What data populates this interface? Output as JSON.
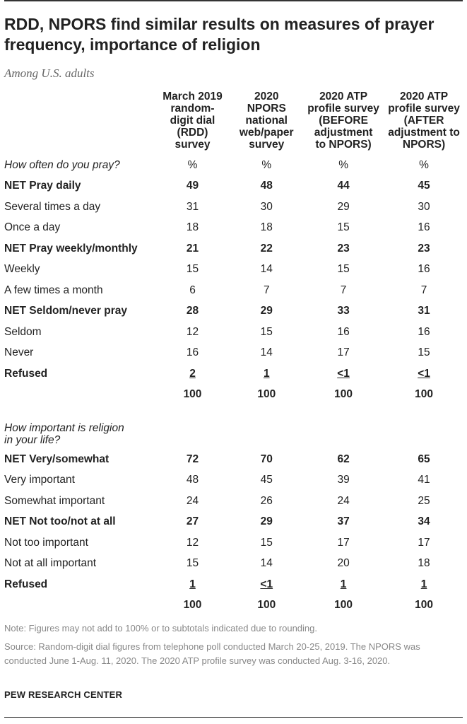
{
  "title": "RDD, NPORS find similar results on measures of prayer frequency, importance of religion",
  "subtitle": "Among U.S. adults",
  "chart_data": {
    "type": "table",
    "columns": [
      "March 2019 random-digit dial (RDD) survey",
      "2020 NPORS national web/paper survey",
      "2020 ATP profile survey (BEFORE adjustment to NPORS)",
      "2020 ATP profile survey (AFTER adjustment to NPORS)"
    ],
    "column_lines": [
      [
        "March 2019",
        "random-",
        "digit dial",
        "(RDD)",
        "survey"
      ],
      [
        "2020",
        "NPORS",
        "national",
        "web/paper",
        "survey"
      ],
      [
        "2020 ATP",
        "profile survey",
        "(BEFORE",
        "adjustment",
        "to NPORS)"
      ],
      [
        "2020 ATP",
        "profile survey",
        "(AFTER",
        "adjustment to",
        "NPORS)"
      ]
    ],
    "sections": [
      {
        "question": "How often do you pray?",
        "unit_row": [
          "%",
          "%",
          "%",
          "%"
        ],
        "rows": [
          {
            "label": "NET Pray daily",
            "bold": true,
            "values": [
              "49",
              "48",
              "44",
              "45"
            ]
          },
          {
            "label": "Several times a day",
            "bold": false,
            "values": [
              "31",
              "30",
              "29",
              "30"
            ]
          },
          {
            "label": "Once a day",
            "bold": false,
            "values": [
              "18",
              "18",
              "15",
              "16"
            ]
          },
          {
            "label": "NET Pray weekly/monthly",
            "bold": true,
            "values": [
              "21",
              "22",
              "23",
              "23"
            ]
          },
          {
            "label": "Weekly",
            "bold": false,
            "values": [
              "15",
              "14",
              "15",
              "16"
            ]
          },
          {
            "label": "A few times a month",
            "bold": false,
            "values": [
              "6",
              "7",
              "7",
              "7"
            ]
          },
          {
            "label": "NET Seldom/never pray",
            "bold": true,
            "values": [
              "28",
              "29",
              "33",
              "31"
            ]
          },
          {
            "label": "Seldom",
            "bold": false,
            "values": [
              "12",
              "15",
              "16",
              "16"
            ]
          },
          {
            "label": "Never",
            "bold": false,
            "values": [
              "16",
              "14",
              "17",
              "15"
            ]
          },
          {
            "label": "Refused",
            "bold": true,
            "underline": true,
            "values": [
              "2",
              "1",
              "<1",
              "<1"
            ]
          }
        ],
        "total": [
          "100",
          "100",
          "100",
          "100"
        ]
      },
      {
        "question": "How important is religion in your life?",
        "question_lines": [
          "How important is religion",
          "in your life?"
        ],
        "rows": [
          {
            "label": "NET Very/somewhat",
            "bold": true,
            "values": [
              "72",
              "70",
              "62",
              "65"
            ]
          },
          {
            "label": "Very important",
            "bold": false,
            "values": [
              "48",
              "45",
              "39",
              "41"
            ]
          },
          {
            "label": "Somewhat important",
            "bold": false,
            "values": [
              "24",
              "26",
              "24",
              "25"
            ]
          },
          {
            "label": "NET Not too/not at all",
            "bold": true,
            "values": [
              "27",
              "29",
              "37",
              "34"
            ]
          },
          {
            "label": "Not too important",
            "bold": false,
            "values": [
              "12",
              "15",
              "17",
              "17"
            ]
          },
          {
            "label": "Not at all important",
            "bold": false,
            "values": [
              "15",
              "14",
              "20",
              "18"
            ]
          },
          {
            "label": "Refused",
            "bold": true,
            "underline": true,
            "values": [
              "1",
              "<1",
              "1",
              "1"
            ]
          }
        ],
        "total": [
          "100",
          "100",
          "100",
          "100"
        ]
      }
    ]
  },
  "note": "Note: Figures may not add to 100% or to subtotals indicated due to rounding.",
  "source": "Source: Random-digit dial figures from telephone poll conducted March 20-25, 2019. The NPORS was conducted June 1-Aug. 11, 2020. The 2020 ATP profile survey was conducted Aug. 3-16, 2020.",
  "org": "PEW RESEARCH CENTER"
}
